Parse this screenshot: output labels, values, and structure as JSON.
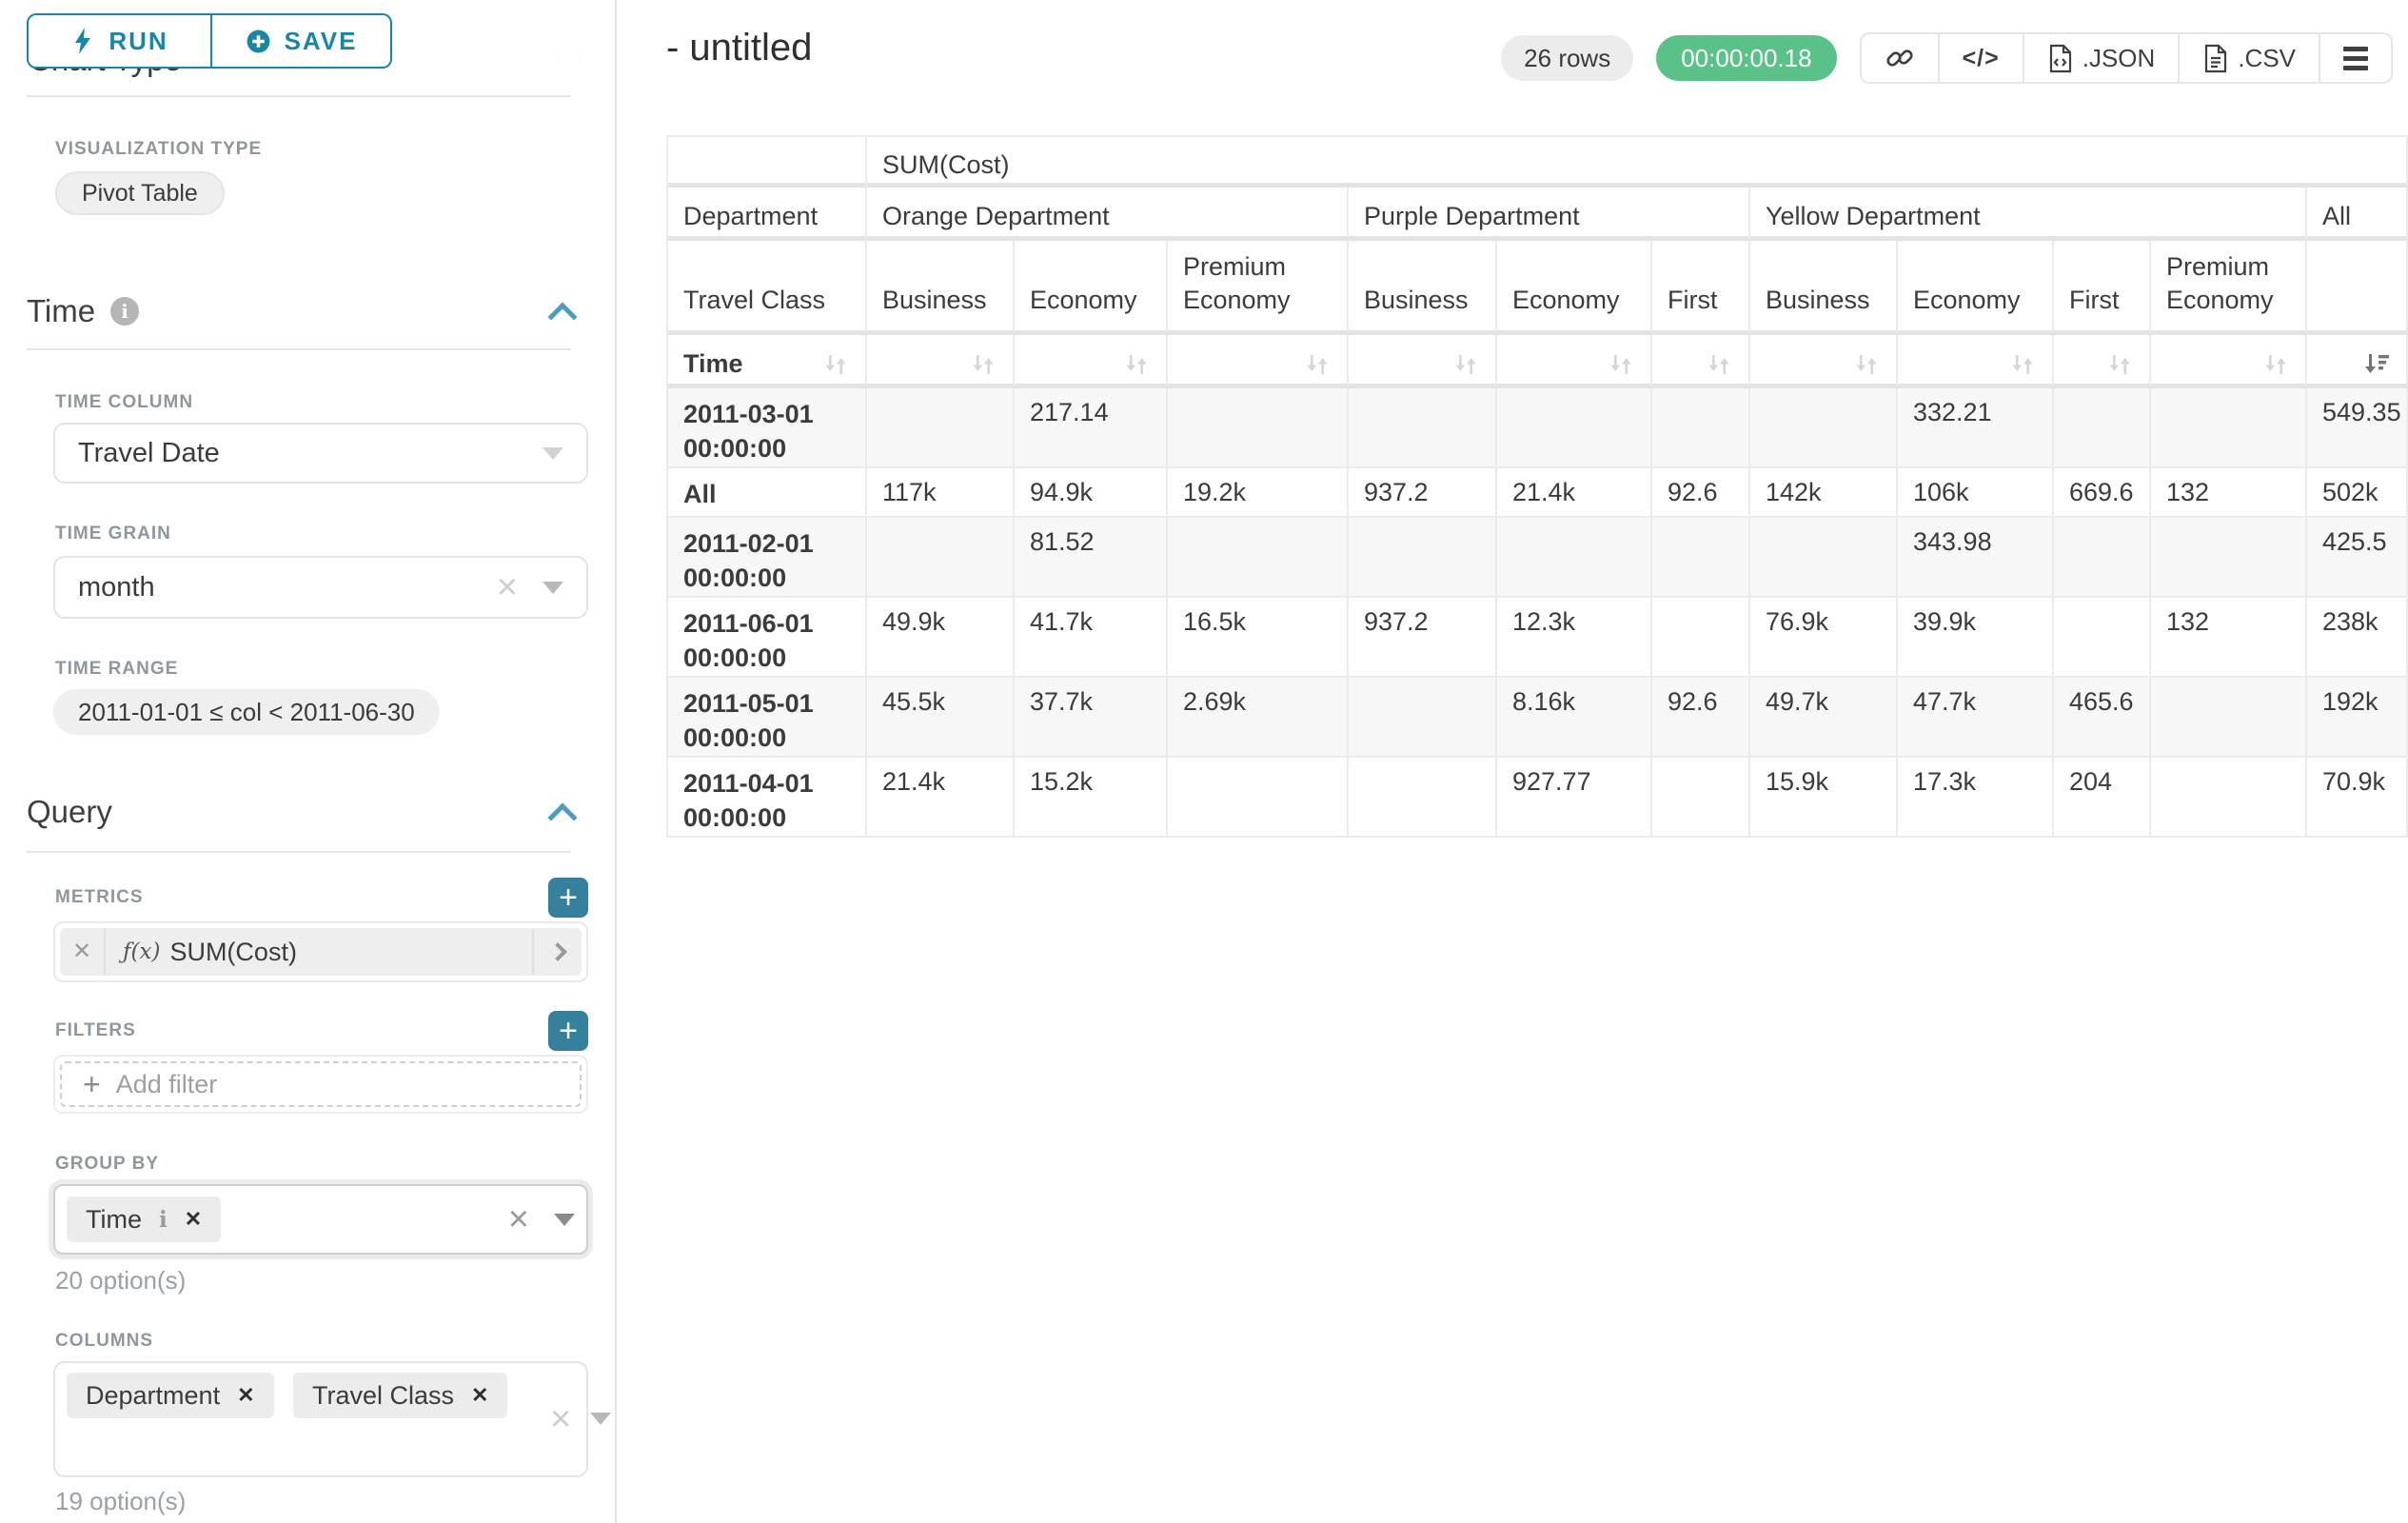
{
  "colors": {
    "accent_teal": "#1b86a3",
    "timer_green": "#5ac189",
    "chevron_blue": "#4f9cc0"
  },
  "toolbar": {
    "run_label": "RUN",
    "save_label": "SAVE"
  },
  "panel": {
    "chart_type_heading": "Chart Type",
    "visualization_type_label": "VISUALIZATION TYPE",
    "visualization_type_value": "Pivot Table",
    "time_section": {
      "title": "Time",
      "time_column_label": "TIME COLUMN",
      "time_column_value": "Travel Date",
      "time_grain_label": "TIME GRAIN",
      "time_grain_value": "month",
      "time_range_label": "TIME RANGE",
      "time_range_value": "2011-01-01 ≤ col < 2011-06-30"
    },
    "query_section": {
      "title": "Query",
      "metrics_label": "METRICS",
      "metric_fx": "ƒ(x)",
      "metric_value": "SUM(Cost)",
      "filters_label": "FILTERS",
      "add_filter_label": "Add filter",
      "group_by_label": "GROUP BY",
      "group_by_values": [
        "Time"
      ],
      "group_by_hint": "20 option(s)",
      "columns_label": "COLUMNS",
      "columns_values": [
        "Department",
        "Travel Class"
      ],
      "columns_hint": "19 option(s)"
    }
  },
  "header": {
    "title": "- untitled",
    "row_count": "26 rows",
    "query_time": "00:00:00.18",
    "export_json_label": ".JSON",
    "export_csv_label": ".CSV",
    "code_glyph": "</>"
  },
  "pivot": {
    "metric_header": "SUM(Cost)",
    "department_label": "Department",
    "travel_class_label": "Travel Class",
    "time_label": "Time",
    "all_label": "All",
    "departments": [
      {
        "name": "Orange Department",
        "classes": [
          "Business",
          "Economy",
          "Premium Economy"
        ]
      },
      {
        "name": "Purple Department",
        "classes": [
          "Business",
          "Economy",
          "First"
        ]
      },
      {
        "name": "Yellow Department",
        "classes": [
          "Business",
          "Economy",
          "First",
          "Premium Economy"
        ]
      }
    ],
    "sort": {
      "column": "All",
      "direction": "descending"
    },
    "rows": [
      {
        "label": "2011-03-01 00:00:00",
        "values": [
          "",
          "217.14",
          "",
          "",
          "",
          "",
          "",
          "332.21",
          "",
          "",
          "549.35"
        ]
      },
      {
        "label": "All",
        "values": [
          "117k",
          "94.9k",
          "19.2k",
          "937.2",
          "21.4k",
          "92.6",
          "142k",
          "106k",
          "669.6",
          "132",
          "502k"
        ]
      },
      {
        "label": "2011-02-01 00:00:00",
        "values": [
          "",
          "81.52",
          "",
          "",
          "",
          "",
          "",
          "343.98",
          "",
          "",
          "425.5"
        ]
      },
      {
        "label": "2011-06-01 00:00:00",
        "values": [
          "49.9k",
          "41.7k",
          "16.5k",
          "937.2",
          "12.3k",
          "",
          "76.9k",
          "39.9k",
          "",
          "132",
          "238k"
        ]
      },
      {
        "label": "2011-05-01 00:00:00",
        "values": [
          "45.5k",
          "37.7k",
          "2.69k",
          "",
          "8.16k",
          "92.6",
          "49.7k",
          "47.7k",
          "465.6",
          "",
          "192k"
        ]
      },
      {
        "label": "2011-04-01 00:00:00",
        "values": [
          "21.4k",
          "15.2k",
          "",
          "",
          "927.77",
          "",
          "15.9k",
          "17.3k",
          "204",
          "",
          "70.9k"
        ]
      }
    ]
  }
}
